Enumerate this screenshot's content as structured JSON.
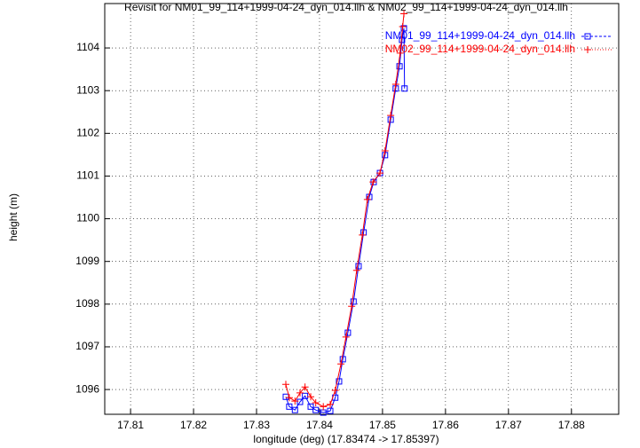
{
  "chart_data": {
    "type": "line",
    "title": "Revisit for NM01_99_114+1999-04-24_dyn_014.llh & NM02_99_114+1999-04-24_dyn_014.llh",
    "xlabel": "longitude (deg) (17.83474 -> 17.85397)",
    "ylabel": "height (m)",
    "xlim": [
      17.8059,
      17.8875
    ],
    "ylim": [
      1095.42,
      1105.04
    ],
    "xticks": [
      17.81,
      17.82,
      17.83,
      17.84,
      17.85,
      17.86,
      17.87,
      17.88
    ],
    "yticks": [
      1096,
      1097,
      1098,
      1099,
      1100,
      1101,
      1102,
      1103,
      1104
    ],
    "grid": true,
    "legend": "top-right",
    "series": [
      {
        "name": "NM01_99_114+1999-04-24_dyn_014.llh",
        "color": "#0000ff",
        "marker": "square",
        "x": [
          17.83465,
          17.8352,
          17.8361,
          17.8369,
          17.8377,
          17.8386,
          17.8394,
          17.8406,
          17.8417,
          17.8425,
          17.8431,
          17.8437,
          17.8445,
          17.8454,
          17.8462,
          17.847,
          17.8479,
          17.8486,
          17.8496,
          17.8504,
          17.8513,
          17.8521,
          17.8527,
          17.8531,
          17.8534,
          17.8535
        ],
        "values": [
          1095.83,
          1095.6,
          1095.52,
          1095.71,
          1095.85,
          1095.6,
          1095.52,
          1095.46,
          1095.5,
          1095.81,
          1096.19,
          1096.71,
          1097.33,
          1098.06,
          1098.89,
          1099.68,
          1100.51,
          1100.86,
          1101.07,
          1101.49,
          1102.32,
          1103.05,
          1103.57,
          1104.19,
          1104.46,
          1103.05
        ]
      },
      {
        "name": "NM02_99_114+1999-04-24_dyn_014.llh",
        "color": "#ff0000",
        "marker": "plus",
        "x": [
          17.83465,
          17.8352,
          17.8361,
          17.8369,
          17.8377,
          17.8386,
          17.8394,
          17.8406,
          17.8417,
          17.8425,
          17.8434,
          17.8442,
          17.8451,
          17.8459,
          17.8468,
          17.8476,
          17.8485,
          17.8496,
          17.8504,
          17.8513,
          17.8521,
          17.8528,
          17.8532,
          17.8534
        ],
        "values": [
          1096.12,
          1095.81,
          1095.73,
          1095.92,
          1096.06,
          1095.83,
          1095.69,
          1095.6,
          1095.65,
          1095.98,
          1096.6,
          1097.23,
          1097.95,
          1098.79,
          1099.62,
          1100.45,
          1100.86,
          1101.07,
          1101.59,
          1102.42,
          1103.15,
          1103.88,
          1104.5,
          1104.8
        ]
      }
    ]
  }
}
